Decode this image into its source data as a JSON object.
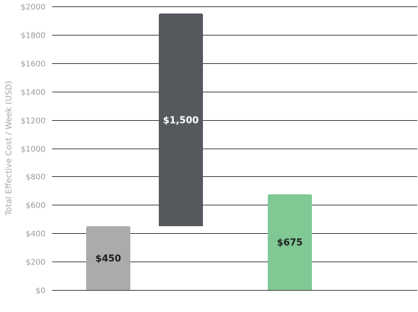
{
  "chart_data": {
    "type": "bar",
    "title": "",
    "xlabel": "",
    "ylabel": "Total Effective Cost / Week (USD)",
    "ylim": [
      0,
      2000
    ],
    "yticks": [
      0,
      200,
      400,
      600,
      800,
      1000,
      1200,
      1400,
      1600,
      1800,
      2000
    ],
    "ytick_labels": [
      "$0",
      "$200",
      "$400",
      "$600",
      "$800",
      "$1000",
      "$1200",
      "$1400",
      "$1600",
      "$1800",
      "$2000"
    ],
    "grid": true,
    "legend": "none",
    "bars": [
      {
        "base": 0,
        "value": 450,
        "label": "$450",
        "color": "#ababab",
        "label_color": "#1e1e1e"
      },
      {
        "base": 450,
        "value": 1500,
        "label": "$1,500",
        "color": "#55585d",
        "label_color": "#ffffff"
      },
      {
        "base": 0,
        "value": 675,
        "label": "$675",
        "color": "#80c995",
        "label_color": "#1e1e1e"
      }
    ]
  }
}
